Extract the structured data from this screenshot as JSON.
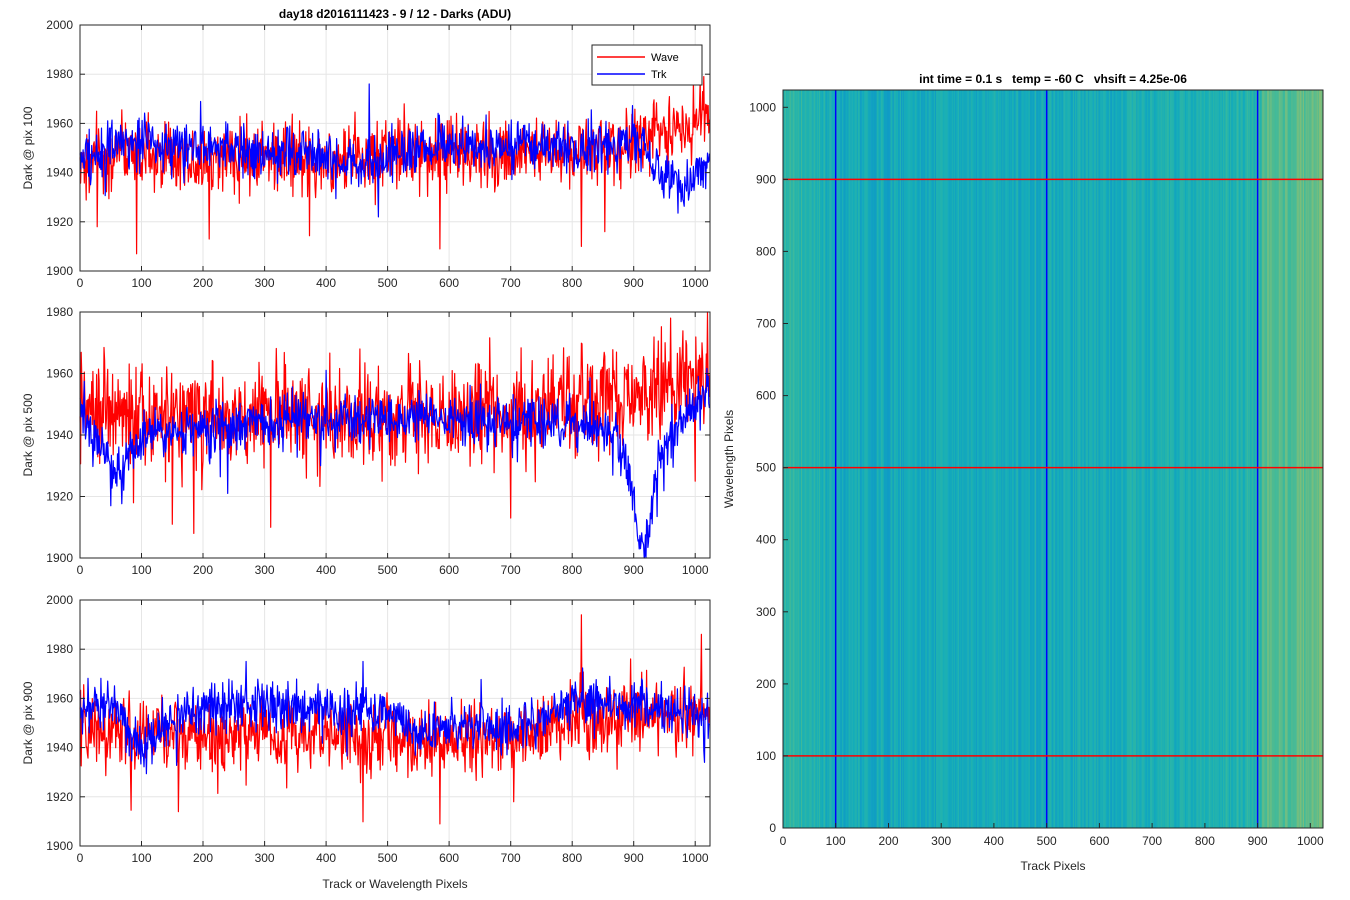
{
  "figure": {
    "title": "day18 d2016111423 - 9 / 12 - Darks (ADU)",
    "shared_xlabel": "Track or Wavelength Pixels"
  },
  "chart_data": [
    {
      "type": "line",
      "title": "day18 d2016111423 - 9 / 12 - Darks (ADU)",
      "xlabel": "",
      "ylabel": "Dark @ pix 100",
      "xlim": [
        0,
        1024
      ],
      "ylim": [
        1900,
        2000
      ],
      "xticks": [
        0,
        100,
        200,
        300,
        400,
        500,
        600,
        700,
        800,
        900,
        1000
      ],
      "yticks": [
        1900,
        1920,
        1940,
        1960,
        1980,
        2000
      ],
      "grid": true,
      "legend": {
        "location": "top-right",
        "entries": [
          "Wave",
          "Trk"
        ]
      },
      "series": [
        {
          "name": "Wave",
          "color": "#ff0000",
          "n_points": 1024,
          "profile_x": [
            0,
            100,
            200,
            300,
            400,
            500,
            600,
            700,
            800,
            900,
            1000,
            1024
          ],
          "profile_mean": [
            1946,
            1948,
            1946,
            1947,
            1946,
            1947,
            1948,
            1948,
            1950,
            1952,
            1960,
            1962
          ],
          "noise_sd": 7,
          "spikes": [
            [
              92,
              1907
            ],
            [
              210,
              1913
            ],
            [
              585,
              1909
            ],
            [
              815,
              1910
            ],
            [
              853,
              1916
            ],
            [
              1008,
              1978
            ]
          ]
        },
        {
          "name": "Trk",
          "color": "#0000ff",
          "n_points": 1024,
          "profile_x": [
            0,
            100,
            200,
            300,
            400,
            450,
            500,
            600,
            700,
            800,
            900,
            960,
            1000,
            1024
          ],
          "profile_mean": [
            1946,
            1953,
            1950,
            1948,
            1947,
            1940,
            1948,
            1950,
            1951,
            1949,
            1953,
            1936,
            1938,
            1945
          ],
          "noise_sd": 5,
          "spikes": [
            [
              470,
              1976
            ],
            [
              485,
              1922
            ],
            [
              980,
              1929
            ]
          ]
        }
      ]
    },
    {
      "type": "line",
      "title": "",
      "xlabel": "",
      "ylabel": "Dark @ pix 500",
      "xlim": [
        0,
        1024
      ],
      "ylim": [
        1900,
        1980
      ],
      "xticks": [
        0,
        100,
        200,
        300,
        400,
        500,
        600,
        700,
        800,
        900,
        1000
      ],
      "yticks": [
        1900,
        1920,
        1940,
        1960,
        1980
      ],
      "grid": true,
      "series": [
        {
          "name": "Wave",
          "color": "#ff0000",
          "n_points": 1024,
          "profile_x": [
            0,
            100,
            200,
            300,
            400,
            500,
            600,
            700,
            800,
            900,
            1000,
            1024
          ],
          "profile_mean": [
            1948,
            1947,
            1945,
            1946,
            1947,
            1947,
            1947,
            1948,
            1950,
            1953,
            1957,
            1959
          ],
          "noise_sd": 8,
          "spikes": [
            [
              150,
              1911
            ],
            [
              185,
              1908
            ],
            [
              310,
              1910
            ],
            [
              700,
              1913
            ],
            [
              960,
              1978
            ],
            [
              1020,
              1980
            ]
          ]
        },
        {
          "name": "Trk",
          "color": "#0000ff",
          "n_points": 1024,
          "profile_x": [
            0,
            40,
            60,
            100,
            200,
            300,
            400,
            500,
            600,
            700,
            800,
            870,
            895,
            905,
            920,
            940,
            1000,
            1024
          ],
          "profile_mean": [
            1948,
            1935,
            1925,
            1940,
            1942,
            1944,
            1945,
            1946,
            1946,
            1944,
            1944,
            1940,
            1925,
            1908,
            1905,
            1932,
            1952,
            1955
          ],
          "noise_sd": 4,
          "spikes": [
            [
              50,
              1917
            ],
            [
              400,
              1961
            ],
            [
              240,
              1921
            ]
          ]
        }
      ]
    },
    {
      "type": "line",
      "title": "",
      "xlabel": "Track or Wavelength Pixels",
      "ylabel": "Dark @ pix 900",
      "xlim": [
        0,
        1024
      ],
      "ylim": [
        1900,
        2000
      ],
      "xticks": [
        0,
        100,
        200,
        300,
        400,
        500,
        600,
        700,
        800,
        900,
        1000
      ],
      "yticks": [
        1900,
        1920,
        1940,
        1960,
        1980,
        2000
      ],
      "grid": true,
      "series": [
        {
          "name": "Wave",
          "color": "#ff0000",
          "n_points": 1024,
          "profile_x": [
            0,
            100,
            200,
            300,
            400,
            500,
            600,
            700,
            800,
            900,
            1000,
            1024
          ],
          "profile_mean": [
            1947,
            1946,
            1944,
            1945,
            1944,
            1944,
            1943,
            1945,
            1951,
            1952,
            1953,
            1955
          ],
          "noise_sd": 7,
          "spikes": [
            [
              160,
              1914
            ],
            [
              585,
              1909
            ],
            [
              705,
              1918
            ],
            [
              815,
              1994
            ],
            [
              895,
              1976
            ],
            [
              1010,
              1986
            ]
          ]
        },
        {
          "name": "Trk",
          "color": "#0000ff",
          "n_points": 1024,
          "profile_x": [
            0,
            50,
            100,
            150,
            200,
            300,
            400,
            500,
            550,
            600,
            700,
            800,
            900,
            1000,
            1024
          ],
          "profile_mean": [
            1955,
            1958,
            1940,
            1952,
            1956,
            1957,
            1955,
            1955,
            1945,
            1950,
            1947,
            1958,
            1957,
            1954,
            1950
          ],
          "noise_sd": 5,
          "spikes": [
            [
              270,
              1975
            ],
            [
              460,
              1975
            ],
            [
              1015,
              1934
            ]
          ]
        }
      ]
    },
    {
      "type": "heatmap",
      "title": "int time = 0.1 s   temp = -60 C   vhsift = 4.25e-06",
      "xlabel": "Track Pixels",
      "ylabel": "Wavelength Pixels",
      "xlim": [
        0,
        1024
      ],
      "ylim": [
        0,
        1024
      ],
      "xticks": [
        0,
        100,
        200,
        300,
        400,
        500,
        600,
        700,
        800,
        900,
        1000
      ],
      "yticks": [
        0,
        100,
        200,
        300,
        400,
        500,
        600,
        700,
        800,
        900,
        1000
      ],
      "colormap": "parula",
      "columns": 512,
      "column_profile_x": [
        0,
        50,
        100,
        200,
        300,
        400,
        500,
        600,
        700,
        800,
        900,
        910,
        960,
        1024
      ],
      "column_profile_level": [
        0.55,
        0.5,
        0.46,
        0.44,
        0.44,
        0.45,
        0.46,
        0.46,
        0.47,
        0.48,
        0.5,
        0.6,
        0.62,
        0.64
      ],
      "column_noise": 0.06,
      "vertical_markers": {
        "color": "#0000ff",
        "x": [
          100,
          500,
          900
        ]
      },
      "horizontal_markers": {
        "color": "#ff0000",
        "y": [
          100,
          500,
          900
        ]
      }
    }
  ]
}
